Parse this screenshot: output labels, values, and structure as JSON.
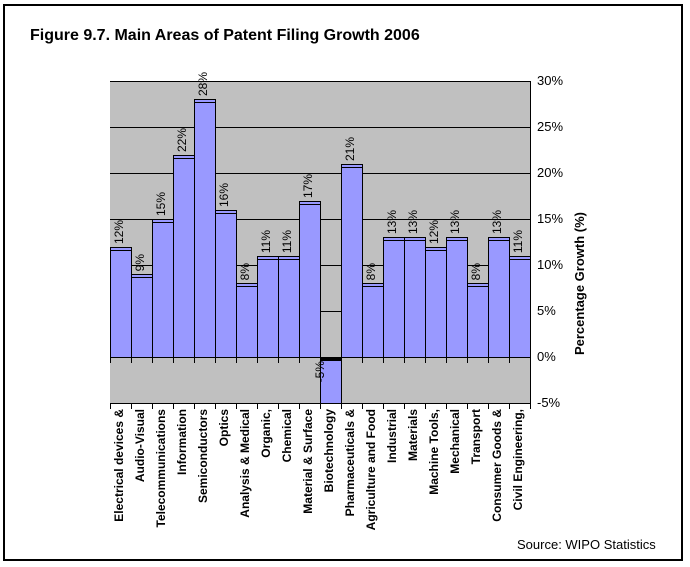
{
  "chart_data": {
    "type": "bar",
    "title": "Figure 9.7. Main Areas of Patent Filing Growth 2006",
    "source": "Source: WIPO Statistics",
    "ylabel": "Percentage Growth (%)",
    "xlabel": "",
    "categories": [
      "Electrical devices &",
      "Audio-Visual",
      "Telecommunications",
      "Information",
      "Semiconductors",
      "Optics",
      "Analysis & Medical",
      "Organic,",
      "Chemical",
      "Material & Surface",
      "Biotechnology",
      "Pharmaceuticals &",
      "Agriculture and Food",
      "Industrial",
      "Materials",
      "Machine Tools,",
      "Mechanical",
      "Transport",
      "Consumer Goods &",
      "Civil Engineering,"
    ],
    "values": [
      12,
      9,
      15,
      22,
      28,
      16,
      8,
      11,
      11,
      17,
      -5,
      21,
      8,
      13,
      13,
      12,
      13,
      8,
      13,
      11
    ],
    "data_labels": [
      "12%",
      "9%",
      "15%",
      "22%",
      "28%",
      "16%",
      "8%",
      "11%",
      "11%",
      "17%",
      "-5%",
      "21%",
      "8%",
      "13%",
      "13%",
      "12%",
      "13%",
      "8%",
      "13%",
      "11%"
    ],
    "yticks": [
      "30%",
      "25%",
      "20%",
      "15%",
      "10%",
      "5%",
      "0%",
      "-5%"
    ],
    "ytick_values": [
      30,
      25,
      20,
      15,
      10,
      5,
      0,
      -5
    ],
    "ylim": [
      -5,
      30
    ],
    "grid": "horizontal",
    "legend": "none",
    "colors": {
      "bar_fill": "#9999FF",
      "bar_border": "#000000",
      "plot_background": "#C0C0C0",
      "gridline": "#000000",
      "page_background": "#FFFFFF",
      "text": "#000000"
    }
  }
}
